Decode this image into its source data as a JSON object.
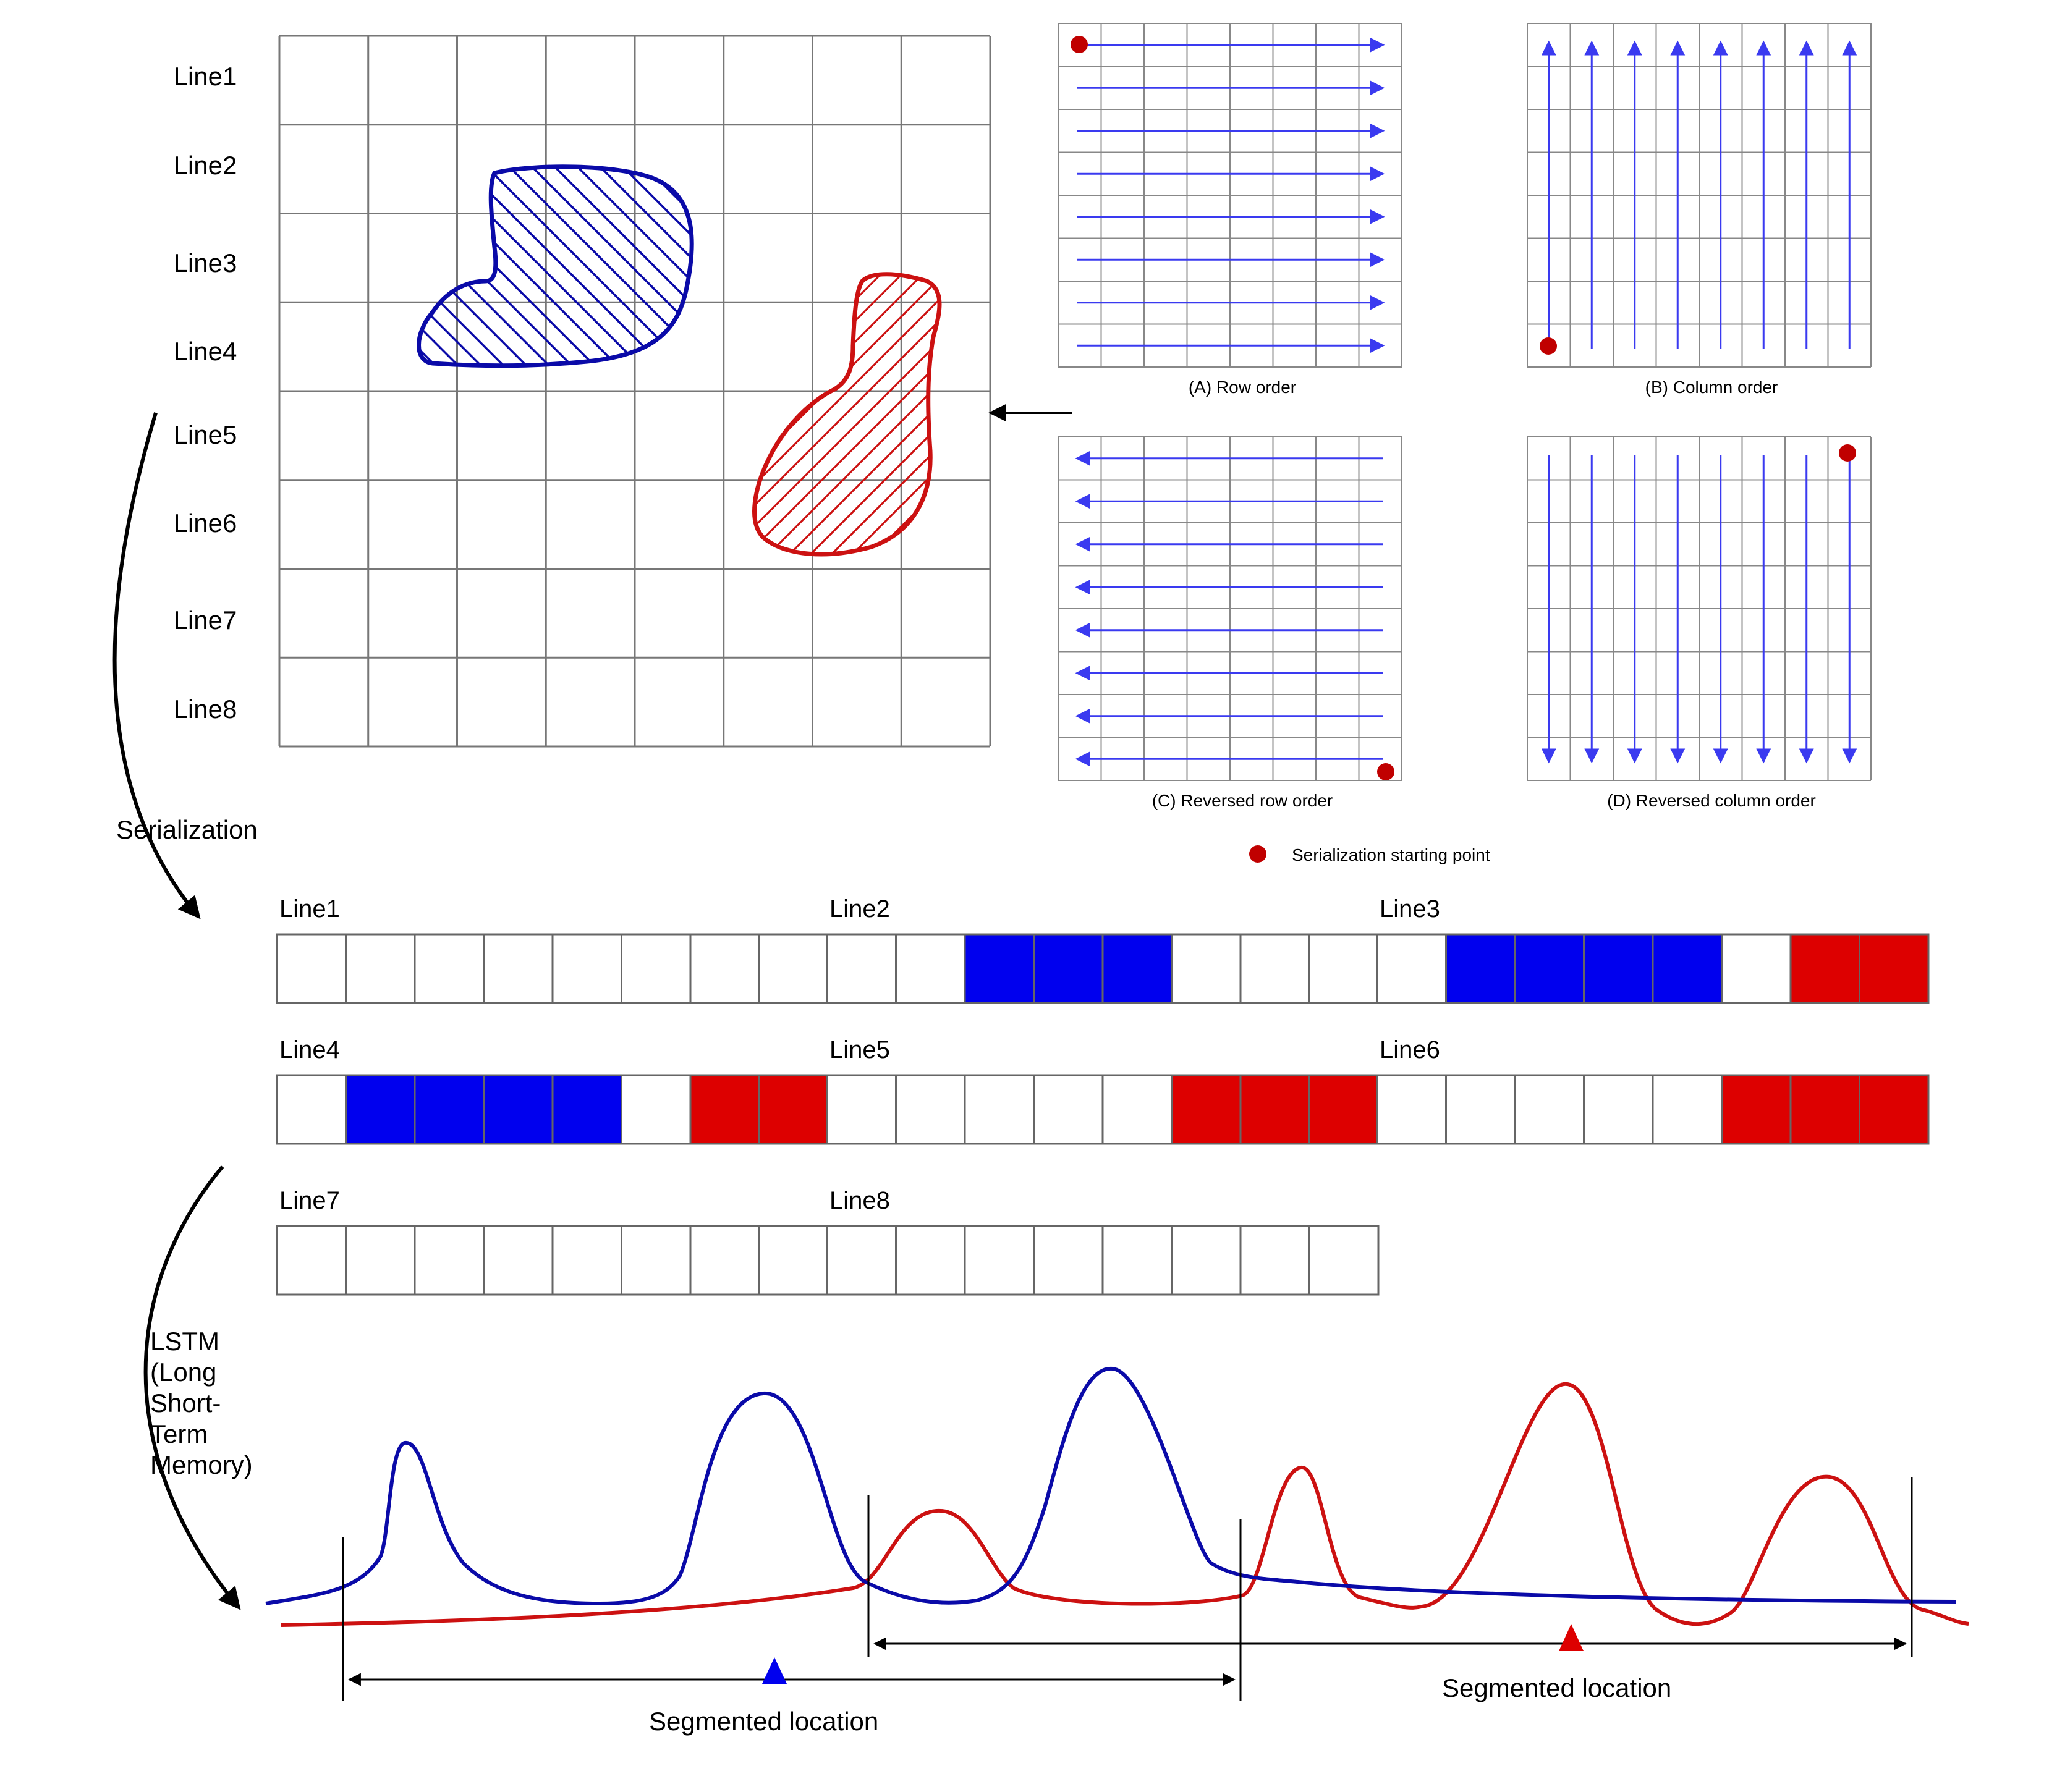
{
  "colors": {
    "blue": "#0a0aa8",
    "red": "#cc1111",
    "cell_blue": "#0000ee",
    "cell_red": "#dd0000",
    "arrow_blue": "#3a3af0",
    "dot_red": "#c00000",
    "grid": "#777777"
  },
  "main_grid": {
    "line_labels": [
      "Line1",
      "Line2",
      "Line3",
      "Line4",
      "Line5",
      "Line6",
      "Line7",
      "Line8"
    ],
    "rows": 8,
    "cols": 8,
    "regions": [
      {
        "color": "blue",
        "name": "blue-region"
      },
      {
        "color": "red",
        "name": "red-region"
      }
    ]
  },
  "serialization_orders": [
    {
      "caption": "(A) Row order",
      "direction": "row",
      "start": "top-left"
    },
    {
      "caption": "(B) Column order",
      "direction": "column",
      "start": "bottom-left"
    },
    {
      "caption": "(C) Reversed row order",
      "direction": "reversed-row",
      "start": "bottom-right"
    },
    {
      "caption": "(D) Reversed column order",
      "direction": "reversed-column",
      "start": "top-right"
    }
  ],
  "legend": {
    "starting_point_label": "Serialization starting point"
  },
  "side_labels": {
    "serialization": "Serialization",
    "lstm": "LSTM\n(Long\nShort-\nTerm\nMemory)"
  },
  "serialized_sequence": {
    "line_labels": [
      "Line1",
      "Line2",
      "Line3",
      "Line4",
      "Line5",
      "Line6",
      "Line7",
      "Line8"
    ],
    "lines": [
      [
        "w",
        "w",
        "w",
        "w",
        "w",
        "w",
        "w",
        "w"
      ],
      [
        "w",
        "w",
        "b",
        "b",
        "b",
        "w",
        "w",
        "w"
      ],
      [
        "w",
        "b",
        "b",
        "b",
        "b",
        "w",
        "r",
        "r"
      ],
      [
        "w",
        "b",
        "b",
        "b",
        "b",
        "w",
        "r",
        "r"
      ],
      [
        "w",
        "w",
        "w",
        "w",
        "w",
        "r",
        "r",
        "r"
      ],
      [
        "w",
        "w",
        "w",
        "w",
        "w",
        "r",
        "r",
        "r"
      ],
      [
        "w",
        "w",
        "w",
        "w",
        "w",
        "w",
        "w",
        "w"
      ],
      [
        "w",
        "w",
        "w",
        "w",
        "w",
        "w",
        "w",
        "w"
      ]
    ]
  },
  "signal": {
    "segment_label_blue": "Segmented location",
    "segment_label_red": "Segmented location"
  }
}
